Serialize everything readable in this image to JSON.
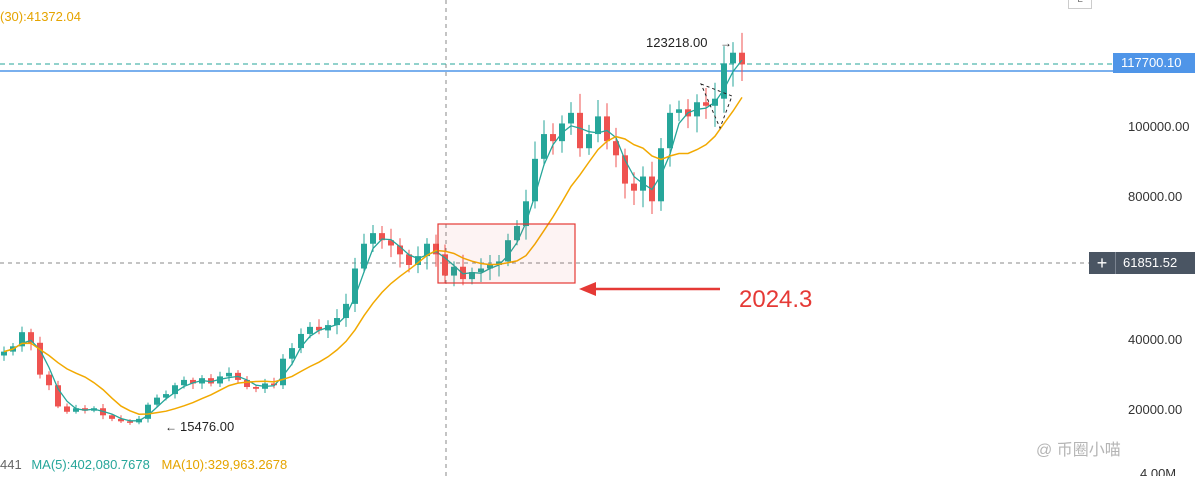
{
  "header": {
    "ma30_label": "(30):41372.04",
    "corner_label": "L"
  },
  "footer": {
    "volume_fragment": "441",
    "ma5_label": "MA(5):402,080.7678",
    "ma10_label": "MA(10):329,963.2678",
    "volume_tick": "4.00M"
  },
  "price_tags": {
    "current": "117700.10",
    "crosshair": "61851.52"
  },
  "annotations": {
    "high": "123218.00",
    "low": "15476.00",
    "event_label": "2024.3"
  },
  "watermark": "@ 币圈小喵",
  "colors": {
    "up": "#26a69a",
    "down": "#ef5350",
    "ma_fast": "#26a69a",
    "ma_slow": "#f2a900",
    "current_line": "#4f95e8",
    "highlight": "#e53935"
  },
  "chart_data": {
    "type": "candlestick",
    "y_ticks": [
      "100000.00",
      "80000.00",
      "40000.00",
      "20000.00"
    ],
    "y_range": [
      0,
      130000
    ],
    "series": [
      {
        "name": "price",
        "closes": [
          36500,
          38000,
          42000,
          39000,
          30000,
          27000,
          21000,
          19500,
          20500,
          19800,
          20500,
          18500,
          17500,
          16800,
          16500,
          17500,
          21500,
          23500,
          24500,
          27000,
          28500,
          27500,
          29000,
          27500,
          29500,
          30500,
          28500,
          26500,
          26000,
          27500,
          27000,
          34500,
          37500,
          41500,
          43500,
          42500,
          44000,
          46000,
          50000,
          60000,
          67000,
          70000,
          68000,
          66500,
          64000,
          61000,
          63500,
          67000,
          64000,
          58000,
          60500,
          57000,
          59000,
          60000,
          61000,
          62000,
          68000,
          72000,
          79000,
          91000,
          98000,
          96000,
          101000,
          104000,
          94000,
          98000,
          103000,
          96000,
          92000,
          84000,
          82000,
          86000,
          79000,
          94000,
          104000,
          105000,
          103000,
          107000,
          106000,
          108000,
          118000,
          121000,
          117700
        ]
      }
    ]
  }
}
